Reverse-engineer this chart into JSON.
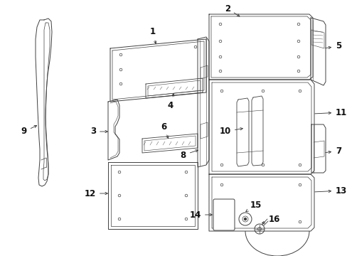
{
  "bg_color": "#ffffff",
  "line_color": "#404040",
  "lw": 0.7,
  "figsize": [
    4.89,
    3.6
  ],
  "dpi": 100
}
